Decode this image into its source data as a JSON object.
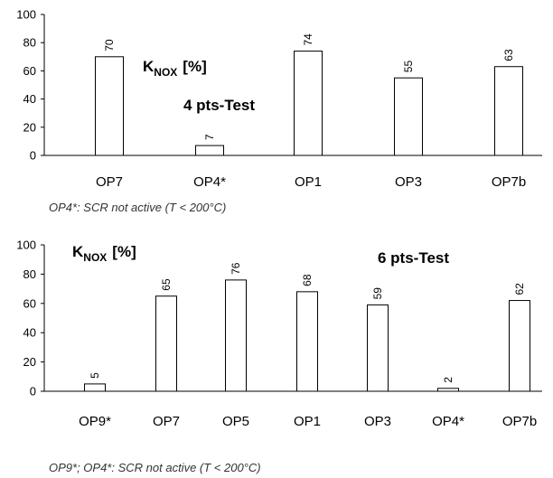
{
  "chart_data": [
    {
      "type": "bar",
      "title": "4 pts-Test",
      "ylabel_main": "K",
      "ylabel_sub": "NOX",
      "ylabel_unit": "[%]",
      "categories": [
        "OP7",
        "OP4*",
        "OP1",
        "OP3",
        "OP7b"
      ],
      "values": [
        70,
        7,
        74,
        55,
        63
      ],
      "data_labels": [
        "70",
        "7",
        "74",
        "55",
        "63"
      ],
      "ylim": [
        0,
        100
      ],
      "yticks": [
        0,
        20,
        40,
        60,
        80,
        100
      ],
      "ytick_labels": [
        "0",
        "20",
        "40",
        "60",
        "80",
        "100"
      ],
      "footnote": "OP4*: SCR not active (T < 200°C)"
    },
    {
      "type": "bar",
      "title": "6 pts-Test",
      "ylabel_main": "K",
      "ylabel_sub": "NOX",
      "ylabel_unit": "[%]",
      "categories": [
        "OP9*",
        "OP7",
        "OP5",
        "OP1",
        "OP3",
        "OP4*",
        "OP7b"
      ],
      "values": [
        5,
        65,
        76,
        68,
        59,
        2,
        62
      ],
      "data_labels": [
        "5",
        "65",
        "76",
        "68",
        "59",
        "2",
        "62"
      ],
      "ylim": [
        0,
        100
      ],
      "yticks": [
        0,
        20,
        40,
        60,
        80,
        100
      ],
      "ytick_labels": [
        "0",
        "20",
        "40",
        "60",
        "80",
        "100"
      ],
      "footnote": "OP9*; OP4*: SCR not active (T < 200°C)"
    }
  ],
  "colors": {
    "bar_fill": "#ffffff",
    "bar_stroke": "#000000",
    "axis": "#000000"
  }
}
